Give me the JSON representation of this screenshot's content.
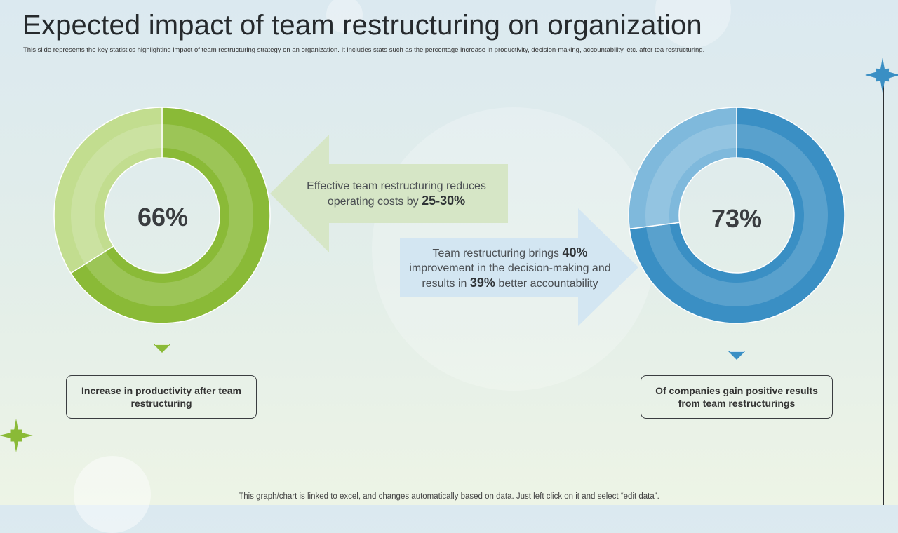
{
  "title": "Expected impact of team restructuring on organization",
  "subtitle": "This slide represents the key statistics highlighting impact of team restructuring strategy on an organization. It includes stats such as the percentage increase in productivity, decision-making, accountability, etc. after tea restructuring.",
  "colors": {
    "green_dark": "#8aba37",
    "green_light": "#c2dd8f",
    "blue_dark": "#3a8fc4",
    "blue_light": "#7fb9dc",
    "arrow_green": "#d6e6c6",
    "arrow_blue": "#d3e6f2"
  },
  "chart_data": [
    {
      "type": "pie",
      "variant": "donut",
      "label": "66%",
      "slices": [
        {
          "value": 66,
          "color": "#8aba37"
        },
        {
          "value": 34,
          "color": "#c2dd8f"
        }
      ],
      "caption": "Increase in productivity after team restructuring"
    },
    {
      "type": "pie",
      "variant": "donut",
      "label": "73%",
      "slices": [
        {
          "value": 73,
          "color": "#3a8fc4"
        },
        {
          "value": 27,
          "color": "#7fb9dc"
        }
      ],
      "caption": "Of companies gain positive results from team restructurings"
    }
  ],
  "arrow_left": {
    "line1": "Effective team restructuring reduces",
    "line2_prefix": "operating costs by ",
    "line2_value": "25-30%"
  },
  "arrow_right": {
    "line1_prefix": "Team restructuring brings ",
    "line1_value": "40%",
    "line2": "improvement in the decision-making and",
    "line3_prefix": "results in ",
    "line3_value": "39%",
    "line3_suffix": " better accountability"
  },
  "footer": "This graph/chart is linked to excel, and changes automatically based on data. Just left click on it and select “edit data”."
}
